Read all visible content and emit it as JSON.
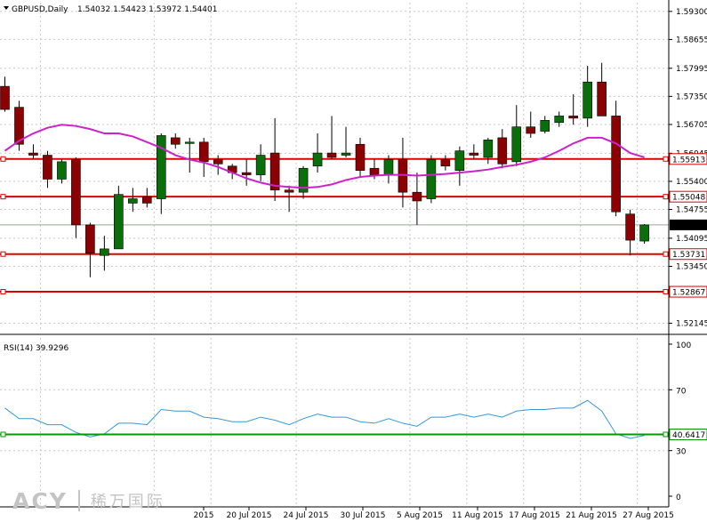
{
  "header": {
    "symbol": "GBPUSD,Daily",
    "ohlc": "1.54032 1.54423 1.53972 1.54401"
  },
  "price_axis": {
    "ticks": [
      "1.59300",
      "1.58655",
      "1.57995",
      "1.57350",
      "1.56705",
      "1.56045",
      "1.55400",
      "1.54755",
      "1.54095",
      "1.53450",
      "1.52145"
    ]
  },
  "horizontal_lines": [
    {
      "value": 1.55913,
      "label": "1.55913"
    },
    {
      "value": 1.55048,
      "label": "1.55048"
    },
    {
      "value": 1.53731,
      "label": "1.53731"
    },
    {
      "value": 1.52867,
      "label": "1.52867"
    }
  ],
  "current_price": {
    "value": 1.54401,
    "label": "1.54401"
  },
  "rsi_panel": {
    "label": "RSI(14) 39.9296",
    "ticks": [
      "100",
      "70",
      "30",
      "0"
    ],
    "level": {
      "value": 40.6417,
      "label": "40.6417"
    }
  },
  "x_axis": {
    "labels": [
      "2015",
      "20 Jul 2015",
      "24 Jul 2015",
      "30 Jul 2015",
      "5 Aug 2015",
      "11 Aug 2015",
      "17 Aug 2015",
      "21 Aug 2015",
      "27 Aug 2015"
    ]
  },
  "watermark": {
    "latin": "ACY",
    "cjk": "稀万国际"
  },
  "colors": {
    "up_candle": "#0a6e0a",
    "down_candle": "#8b0000",
    "moving_average": "#cc22cc",
    "horizontal_line": "#dd0000",
    "rsi_line": "#3399dd",
    "rsi_level": "#009900",
    "grid": "#c8c8c8"
  },
  "chart_data": {
    "type": "candlestick",
    "symbol": "GBPUSD",
    "timeframe": "Daily",
    "candles": [
      {
        "o": 1.5758,
        "h": 1.578,
        "l": 1.57,
        "c": 1.5705
      },
      {
        "o": 1.571,
        "h": 1.5725,
        "l": 1.561,
        "c": 1.5625
      },
      {
        "o": 1.5605,
        "h": 1.5625,
        "l": 1.559,
        "c": 1.56
      },
      {
        "o": 1.56,
        "h": 1.561,
        "l": 1.5525,
        "c": 1.5545
      },
      {
        "o": 1.5545,
        "h": 1.559,
        "l": 1.5535,
        "c": 1.5585
      },
      {
        "o": 1.559,
        "h": 1.5595,
        "l": 1.541,
        "c": 1.544
      },
      {
        "o": 1.544,
        "h": 1.5445,
        "l": 1.532,
        "c": 1.5375
      },
      {
        "o": 1.537,
        "h": 1.5415,
        "l": 1.5335,
        "c": 1.5385
      },
      {
        "o": 1.5385,
        "h": 1.553,
        "l": 1.5385,
        "c": 1.551
      },
      {
        "o": 1.549,
        "h": 1.5525,
        "l": 1.547,
        "c": 1.55
      },
      {
        "o": 1.5505,
        "h": 1.5525,
        "l": 1.548,
        "c": 1.549
      },
      {
        "o": 1.55,
        "h": 1.565,
        "l": 1.5465,
        "c": 1.5645
      },
      {
        "o": 1.564,
        "h": 1.565,
        "l": 1.5615,
        "c": 1.5625
      },
      {
        "o": 1.563,
        "h": 1.564,
        "l": 1.556,
        "c": 1.563
      },
      {
        "o": 1.563,
        "h": 1.564,
        "l": 1.555,
        "c": 1.5585
      },
      {
        "o": 1.559,
        "h": 1.56,
        "l": 1.5555,
        "c": 1.558
      },
      {
        "o": 1.5575,
        "h": 1.558,
        "l": 1.5545,
        "c": 1.556
      },
      {
        "o": 1.556,
        "h": 1.559,
        "l": 1.553,
        "c": 1.5555
      },
      {
        "o": 1.5555,
        "h": 1.5625,
        "l": 1.554,
        "c": 1.56
      },
      {
        "o": 1.5605,
        "h": 1.5685,
        "l": 1.5495,
        "c": 1.552
      },
      {
        "o": 1.552,
        "h": 1.553,
        "l": 1.547,
        "c": 1.5515
      },
      {
        "o": 1.5515,
        "h": 1.5575,
        "l": 1.55,
        "c": 1.557
      },
      {
        "o": 1.5575,
        "h": 1.565,
        "l": 1.556,
        "c": 1.5605
      },
      {
        "o": 1.5605,
        "h": 1.569,
        "l": 1.559,
        "c": 1.5595
      },
      {
        "o": 1.56,
        "h": 1.5665,
        "l": 1.5595,
        "c": 1.5605
      },
      {
        "o": 1.5625,
        "h": 1.564,
        "l": 1.555,
        "c": 1.5565
      },
      {
        "o": 1.557,
        "h": 1.559,
        "l": 1.5545,
        "c": 1.5555
      },
      {
        "o": 1.5555,
        "h": 1.56,
        "l": 1.5535,
        "c": 1.559
      },
      {
        "o": 1.559,
        "h": 1.564,
        "l": 1.548,
        "c": 1.5515
      },
      {
        "o": 1.5515,
        "h": 1.556,
        "l": 1.544,
        "c": 1.5495
      },
      {
        "o": 1.55,
        "h": 1.56,
        "l": 1.549,
        "c": 1.559
      },
      {
        "o": 1.559,
        "h": 1.56,
        "l": 1.5565,
        "c": 1.5575
      },
      {
        "o": 1.5565,
        "h": 1.562,
        "l": 1.553,
        "c": 1.561
      },
      {
        "o": 1.5605,
        "h": 1.5625,
        "l": 1.559,
        "c": 1.56
      },
      {
        "o": 1.5595,
        "h": 1.564,
        "l": 1.558,
        "c": 1.5635
      },
      {
        "o": 1.564,
        "h": 1.566,
        "l": 1.557,
        "c": 1.558
      },
      {
        "o": 1.5585,
        "h": 1.5715,
        "l": 1.5575,
        "c": 1.5665
      },
      {
        "o": 1.5665,
        "h": 1.57,
        "l": 1.564,
        "c": 1.565
      },
      {
        "o": 1.5655,
        "h": 1.569,
        "l": 1.565,
        "c": 1.568
      },
      {
        "o": 1.5675,
        "h": 1.57,
        "l": 1.5665,
        "c": 1.569
      },
      {
        "o": 1.569,
        "h": 1.574,
        "l": 1.567,
        "c": 1.5685
      },
      {
        "o": 1.5685,
        "h": 1.5805,
        "l": 1.5665,
        "c": 1.5768
      },
      {
        "o": 1.5768,
        "h": 1.5812,
        "l": 1.569,
        "c": 1.569
      },
      {
        "o": 1.569,
        "h": 1.5725,
        "l": 1.546,
        "c": 1.547
      },
      {
        "o": 1.5465,
        "h": 1.5475,
        "l": 1.537,
        "c": 1.5405
      },
      {
        "o": 1.5403,
        "h": 1.5442,
        "l": 1.5397,
        "c": 1.544
      }
    ],
    "moving_average": [
      1.561,
      1.5633,
      1.565,
      1.5663,
      1.567,
      1.5667,
      1.566,
      1.565,
      1.565,
      1.5643,
      1.563,
      1.5617,
      1.56,
      1.559,
      1.5583,
      1.5573,
      1.556,
      1.5547,
      1.5537,
      1.553,
      1.5527,
      1.5525,
      1.5527,
      1.5533,
      1.5543,
      1.555,
      1.5553,
      1.5555,
      1.5555,
      1.5553,
      1.5555,
      1.5557,
      1.556,
      1.5563,
      1.5567,
      1.5573,
      1.5578,
      1.5585,
      1.5595,
      1.561,
      1.5627,
      1.564,
      1.564,
      1.5627,
      1.5605,
      1.5595
    ],
    "price_ylim": [
      1.5195,
      1.595
    ],
    "rsi": {
      "name": "RSI(14)",
      "values": [
        58,
        51,
        51,
        47,
        47,
        42,
        39,
        41,
        48,
        48,
        47,
        57,
        56,
        56,
        52,
        51,
        49,
        49,
        52,
        50,
        47,
        51,
        54,
        52,
        52,
        49,
        48,
        51,
        48,
        46,
        52,
        52,
        54,
        52,
        54,
        52,
        56,
        57,
        57,
        58,
        58,
        63,
        56,
        41,
        38,
        40
      ],
      "ylim": [
        0,
        100
      ]
    }
  }
}
